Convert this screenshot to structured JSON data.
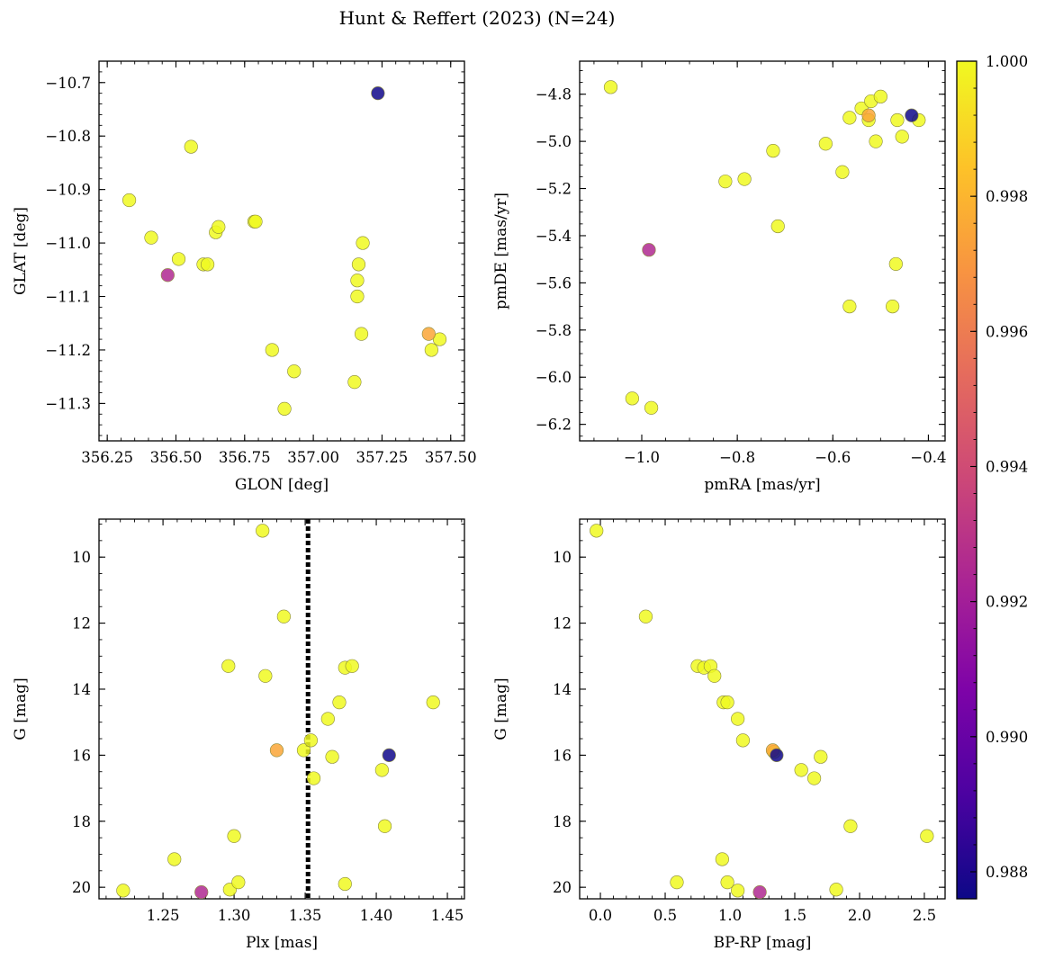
{
  "chart_data": {
    "title": "Hunt & Reffert (2023) (N=24)",
    "colorbar": {
      "colormap": "plasma",
      "range": [
        0.9876,
        1.0
      ],
      "ticks": [
        0.988,
        0.99,
        0.992,
        0.994,
        0.996,
        0.998,
        1.0
      ],
      "tick_labels": [
        "0.988",
        "0.990",
        "0.992",
        "0.994",
        "0.996",
        "0.998",
        "1.000"
      ]
    },
    "panels": [
      {
        "type": "scatter",
        "xlabel": "GLON [deg]",
        "ylabel": "GLAT [deg]",
        "xlim": [
          356.22,
          357.55
        ],
        "ylim": [
          -11.37,
          -10.66
        ],
        "invert_y": false,
        "xticks": [
          356.25,
          356.5,
          356.75,
          357.0,
          357.25,
          357.5
        ],
        "xtick_labels": [
          "356.25",
          "356.50",
          "356.75",
          "357.00",
          "357.25",
          "357.50"
        ],
        "xminor": 0.05,
        "yticks": [
          -11.3,
          -11.2,
          -11.1,
          -11.0,
          -10.9,
          -10.8,
          -10.7
        ],
        "ytick_labels": [
          "−11.3",
          "−11.2",
          "−11.1",
          "−11.0",
          "−10.9",
          "−10.8",
          "−10.7"
        ],
        "yminor": 0.02,
        "points": [
          {
            "x": 356.33,
            "y": -10.92,
            "c": 1.0
          },
          {
            "x": 356.41,
            "y": -10.99,
            "c": 1.0
          },
          {
            "x": 356.47,
            "y": -11.06,
            "c": 0.9925
          },
          {
            "x": 356.51,
            "y": -11.03,
            "c": 1.0
          },
          {
            "x": 356.555,
            "y": -10.82,
            "c": 1.0
          },
          {
            "x": 356.6,
            "y": -11.04,
            "c": 1.0
          },
          {
            "x": 356.615,
            "y": -11.04,
            "c": 1.0
          },
          {
            "x": 356.645,
            "y": -10.98,
            "c": 1.0
          },
          {
            "x": 356.655,
            "y": -10.97,
            "c": 1.0
          },
          {
            "x": 356.785,
            "y": -10.96,
            "c": 1.0
          },
          {
            "x": 356.79,
            "y": -10.96,
            "c": 1.0
          },
          {
            "x": 356.85,
            "y": -11.2,
            "c": 1.0
          },
          {
            "x": 356.895,
            "y": -11.31,
            "c": 1.0
          },
          {
            "x": 356.93,
            "y": -11.24,
            "c": 1.0
          },
          {
            "x": 357.15,
            "y": -11.26,
            "c": 1.0
          },
          {
            "x": 357.16,
            "y": -11.1,
            "c": 1.0
          },
          {
            "x": 357.16,
            "y": -11.07,
            "c": 1.0
          },
          {
            "x": 357.165,
            "y": -11.04,
            "c": 1.0
          },
          {
            "x": 357.175,
            "y": -11.17,
            "c": 1.0
          },
          {
            "x": 357.18,
            "y": -11.0,
            "c": 1.0
          },
          {
            "x": 357.43,
            "y": -11.2,
            "c": 1.0
          },
          {
            "x": 357.46,
            "y": -11.18,
            "c": 1.0
          },
          {
            "x": 357.42,
            "y": -11.17,
            "c": 0.9975
          },
          {
            "x": 357.235,
            "y": -10.72,
            "c": 0.9877
          }
        ]
      },
      {
        "type": "scatter",
        "xlabel": "pmRA [mas/yr]",
        "ylabel": "pmDE [mas/yr]",
        "xlim": [
          -1.13,
          -0.365
        ],
        "ylim": [
          -6.27,
          -4.66
        ],
        "invert_y": false,
        "xticks": [
          -1.0,
          -0.8,
          -0.6,
          -0.4
        ],
        "xtick_labels": [
          "−1.0",
          "−0.8",
          "−0.6",
          "−0.4"
        ],
        "xminor": 0.05,
        "yticks": [
          -6.2,
          -6.0,
          -5.8,
          -5.6,
          -5.4,
          -5.2,
          -5.0,
          -4.8
        ],
        "ytick_labels": [
          "−6.2",
          "−6.0",
          "−5.8",
          "−5.6",
          "−5.4",
          "−5.2",
          "−5.0",
          "−4.8"
        ],
        "yminor": 0.05,
        "points": [
          {
            "x": -1.065,
            "y": -4.77,
            "c": 1.0
          },
          {
            "x": -1.02,
            "y": -6.09,
            "c": 1.0
          },
          {
            "x": -0.985,
            "y": -5.46,
            "c": 0.9925
          },
          {
            "x": -0.98,
            "y": -6.13,
            "c": 1.0
          },
          {
            "x": -0.825,
            "y": -5.17,
            "c": 1.0
          },
          {
            "x": -0.785,
            "y": -5.16,
            "c": 1.0
          },
          {
            "x": -0.725,
            "y": -5.04,
            "c": 1.0
          },
          {
            "x": -0.715,
            "y": -5.36,
            "c": 1.0
          },
          {
            "x": -0.615,
            "y": -5.01,
            "c": 1.0
          },
          {
            "x": -0.58,
            "y": -5.13,
            "c": 1.0
          },
          {
            "x": -0.565,
            "y": -4.9,
            "c": 1.0
          },
          {
            "x": -0.565,
            "y": -5.7,
            "c": 1.0
          },
          {
            "x": -0.54,
            "y": -4.86,
            "c": 1.0
          },
          {
            "x": -0.525,
            "y": -4.89,
            "c": 0.9975
          },
          {
            "x": -0.525,
            "y": -4.91,
            "c": 1.0
          },
          {
            "x": -0.52,
            "y": -4.83,
            "c": 1.0
          },
          {
            "x": -0.51,
            "y": -5.0,
            "c": 1.0
          },
          {
            "x": -0.5,
            "y": -4.81,
            "c": 1.0
          },
          {
            "x": -0.475,
            "y": -5.7,
            "c": 1.0
          },
          {
            "x": -0.468,
            "y": -5.52,
            "c": 1.0
          },
          {
            "x": -0.465,
            "y": -4.91,
            "c": 1.0
          },
          {
            "x": -0.455,
            "y": -4.98,
            "c": 1.0
          },
          {
            "x": -0.435,
            "y": -4.89,
            "c": 0.9877
          },
          {
            "x": -0.42,
            "y": -4.91,
            "c": 1.0
          }
        ]
      },
      {
        "type": "scatter",
        "xlabel": "Plx [mas]",
        "ylabel": "G [mag]",
        "xlim": [
          1.205,
          1.462
        ],
        "ylim": [
          20.35,
          8.85
        ],
        "invert_y": true,
        "xticks": [
          1.25,
          1.3,
          1.35,
          1.4,
          1.45
        ],
        "xtick_labels": [
          "1.25",
          "1.30",
          "1.35",
          "1.40",
          "1.45"
        ],
        "xminor": 0.01,
        "yticks": [
          10,
          12,
          14,
          16,
          18,
          20
        ],
        "ytick_labels": [
          "10",
          "12",
          "14",
          "16",
          "18",
          "20"
        ],
        "yminor": 0.5,
        "vline": {
          "x": 1.352,
          "style": "dotted"
        },
        "points": [
          {
            "x": 1.222,
            "y": 20.1,
            "c": 1.0
          },
          {
            "x": 1.258,
            "y": 19.15,
            "c": 1.0
          },
          {
            "x": 1.277,
            "y": 20.15,
            "c": 0.9925
          },
          {
            "x": 1.296,
            "y": 13.3,
            "c": 1.0
          },
          {
            "x": 1.297,
            "y": 20.07,
            "c": 1.0
          },
          {
            "x": 1.3,
            "y": 18.45,
            "c": 1.0
          },
          {
            "x": 1.303,
            "y": 19.85,
            "c": 1.0
          },
          {
            "x": 1.32,
            "y": 9.2,
            "c": 1.0
          },
          {
            "x": 1.322,
            "y": 13.6,
            "c": 1.0
          },
          {
            "x": 1.33,
            "y": 15.85,
            "c": 0.9975
          },
          {
            "x": 1.335,
            "y": 11.8,
            "c": 1.0
          },
          {
            "x": 1.349,
            "y": 15.85,
            "c": 1.0
          },
          {
            "x": 1.354,
            "y": 15.55,
            "c": 1.0
          },
          {
            "x": 1.356,
            "y": 16.7,
            "c": 1.0
          },
          {
            "x": 1.366,
            "y": 14.9,
            "c": 1.0
          },
          {
            "x": 1.369,
            "y": 16.05,
            "c": 1.0
          },
          {
            "x": 1.374,
            "y": 14.4,
            "c": 1.0
          },
          {
            "x": 1.378,
            "y": 13.35,
            "c": 1.0
          },
          {
            "x": 1.378,
            "y": 19.9,
            "c": 1.0
          },
          {
            "x": 1.383,
            "y": 13.3,
            "c": 1.0
          },
          {
            "x": 1.404,
            "y": 16.45,
            "c": 1.0
          },
          {
            "x": 1.406,
            "y": 18.15,
            "c": 1.0
          },
          {
            "x": 1.409,
            "y": 16.0,
            "c": 0.9877
          },
          {
            "x": 1.44,
            "y": 14.4,
            "c": 1.0
          }
        ]
      },
      {
        "type": "scatter",
        "xlabel": "BP-RP [mag]",
        "ylabel": "G [mag]",
        "xlim": [
          -0.16,
          2.66
        ],
        "ylim": [
          20.35,
          8.85
        ],
        "invert_y": true,
        "xticks": [
          0.0,
          0.5,
          1.0,
          1.5,
          2.0,
          2.5
        ],
        "xtick_labels": [
          "0.0",
          "0.5",
          "1.0",
          "1.5",
          "2.0",
          "2.5"
        ],
        "xminor": 0.1,
        "yticks": [
          10,
          12,
          14,
          16,
          18,
          20
        ],
        "ytick_labels": [
          "10",
          "12",
          "14",
          "16",
          "18",
          "20"
        ],
        "yminor": 0.5,
        "points": [
          {
            "x": -0.03,
            "y": 9.2,
            "c": 1.0
          },
          {
            "x": 0.35,
            "y": 11.8,
            "c": 1.0
          },
          {
            "x": 0.59,
            "y": 19.85,
            "c": 1.0
          },
          {
            "x": 0.75,
            "y": 13.3,
            "c": 1.0
          },
          {
            "x": 0.8,
            "y": 13.35,
            "c": 1.0
          },
          {
            "x": 0.85,
            "y": 13.3,
            "c": 1.0
          },
          {
            "x": 0.88,
            "y": 13.6,
            "c": 1.0
          },
          {
            "x": 0.94,
            "y": 19.15,
            "c": 1.0
          },
          {
            "x": 0.95,
            "y": 14.4,
            "c": 1.0
          },
          {
            "x": 0.98,
            "y": 14.4,
            "c": 1.0
          },
          {
            "x": 0.98,
            "y": 19.85,
            "c": 1.0
          },
          {
            "x": 1.06,
            "y": 14.9,
            "c": 1.0
          },
          {
            "x": 1.06,
            "y": 20.1,
            "c": 1.0
          },
          {
            "x": 1.1,
            "y": 15.55,
            "c": 1.0
          },
          {
            "x": 1.23,
            "y": 20.15,
            "c": 0.9925
          },
          {
            "x": 1.33,
            "y": 15.85,
            "c": 0.9975
          },
          {
            "x": 1.34,
            "y": 15.9,
            "c": 1.0
          },
          {
            "x": 1.36,
            "y": 16.0,
            "c": 0.9877
          },
          {
            "x": 1.55,
            "y": 16.45,
            "c": 1.0
          },
          {
            "x": 1.65,
            "y": 16.7,
            "c": 1.0
          },
          {
            "x": 1.7,
            "y": 16.05,
            "c": 1.0
          },
          {
            "x": 1.82,
            "y": 20.07,
            "c": 1.0
          },
          {
            "x": 1.93,
            "y": 18.15,
            "c": 1.0
          },
          {
            "x": 2.52,
            "y": 18.45,
            "c": 1.0
          }
        ]
      }
    ]
  }
}
